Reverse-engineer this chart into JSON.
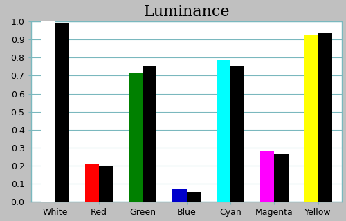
{
  "title": "Luminance",
  "categories": [
    "White",
    "Red",
    "Green",
    "Blue",
    "Cyan",
    "Magenta",
    "Yellow"
  ],
  "measured_values": [
    1.0,
    0.21,
    0.715,
    0.07,
    0.785,
    0.285,
    0.925
  ],
  "reference_values": [
    0.99,
    0.2,
    0.755,
    0.055,
    0.755,
    0.265,
    0.935
  ],
  "measured_colors": [
    "#ffffff",
    "#ff0000",
    "#008000",
    "#0000cc",
    "#00ffff",
    "#ff00ff",
    "#ffff00"
  ],
  "reference_color": "#000000",
  "ylim": [
    0.0,
    1.0
  ],
  "yticks": [
    0.0,
    0.1,
    0.2,
    0.3,
    0.4,
    0.5,
    0.6,
    0.7,
    0.8,
    0.9,
    1.0
  ],
  "background_color": "#c0c0c0",
  "plot_background_color": "#ffffff",
  "grid_color": "#7ab8be",
  "bar_width": 0.32,
  "title_fontsize": 16,
  "tick_fontsize": 9
}
